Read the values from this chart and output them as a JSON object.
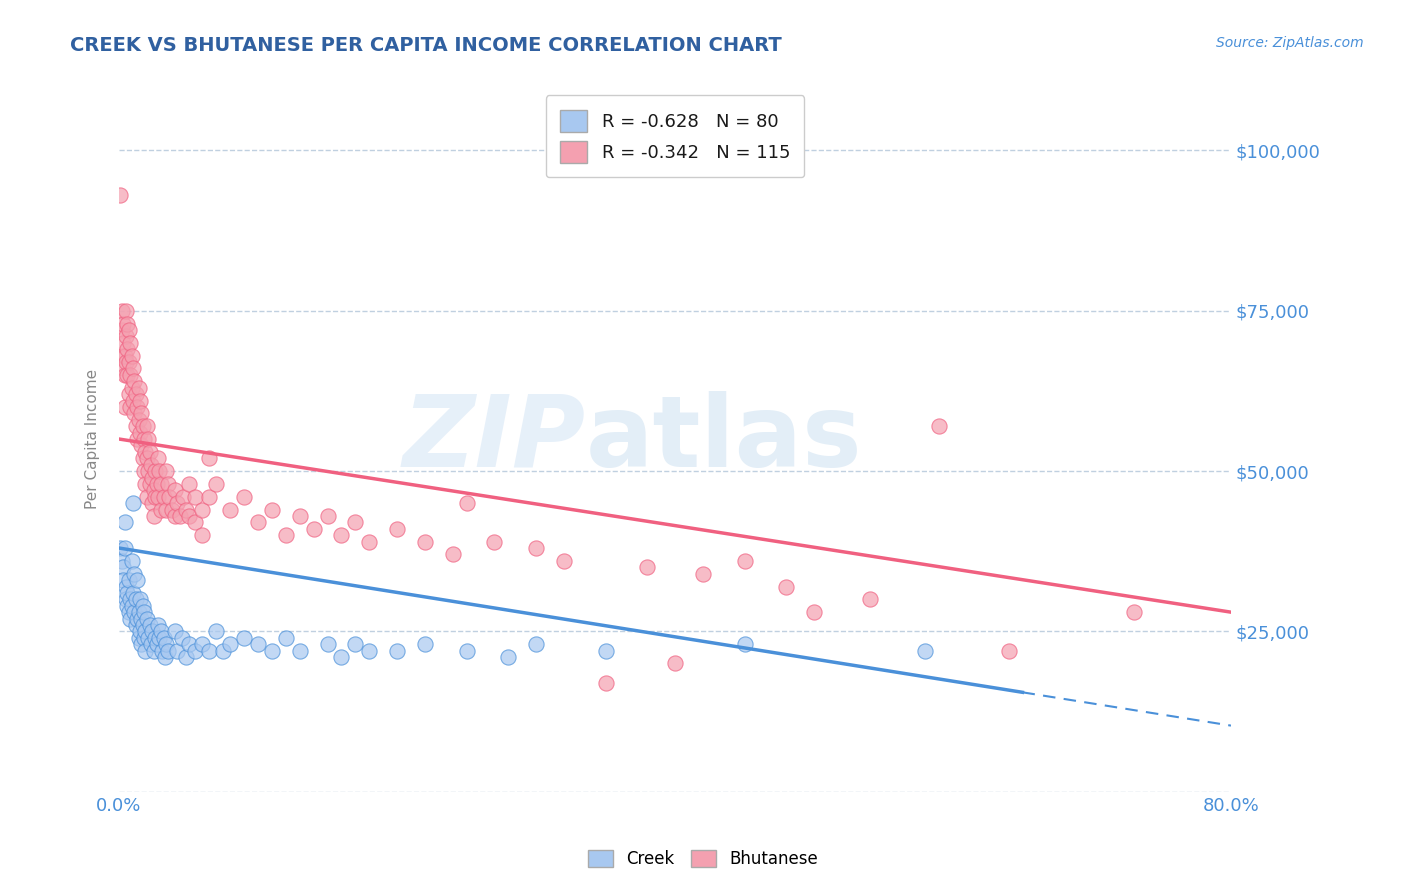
{
  "title": "CREEK VS BHUTANESE PER CAPITA INCOME CORRELATION CHART",
  "source_text": "Source: ZipAtlas.com",
  "ylabel": "Per Capita Income",
  "xlim": [
    0.0,
    0.8
  ],
  "ylim": [
    0,
    110000
  ],
  "yticks": [
    0,
    25000,
    50000,
    75000,
    100000
  ],
  "ytick_labels": [
    "",
    "$25,000",
    "$50,000",
    "$75,000",
    "$100,000"
  ],
  "xtick_labels": [
    "0.0%",
    "",
    "",
    "",
    "",
    "",
    "",
    "",
    "80.0%"
  ],
  "creek_color": "#a8c8f0",
  "bhutanese_color": "#f4a0b0",
  "creek_line_color": "#4a90d9",
  "bhutanese_line_color": "#f06080",
  "creek_R": -0.628,
  "creek_N": 80,
  "bhutanese_R": -0.342,
  "bhutanese_N": 115,
  "watermark_part1": "ZIP",
  "watermark_part2": "atlas",
  "background_color": "#ffffff",
  "grid_color": "#c0d0e0",
  "title_color": "#3060a0",
  "axis_label_color": "#888888",
  "tick_label_color": "#4a90d9",
  "creek_line_y0": 38000,
  "creek_line_y_at_065": 15500,
  "creek_line_x_solid_end": 0.65,
  "bhut_line_y0": 55000,
  "bhut_line_y1": 28000,
  "creek_scatter": [
    [
      0.001,
      38000
    ],
    [
      0.002,
      36000
    ],
    [
      0.003,
      35000
    ],
    [
      0.003,
      33000
    ],
    [
      0.004,
      42000
    ],
    [
      0.004,
      38000
    ],
    [
      0.005,
      32000
    ],
    [
      0.005,
      30000
    ],
    [
      0.006,
      29000
    ],
    [
      0.006,
      31000
    ],
    [
      0.007,
      28000
    ],
    [
      0.007,
      33000
    ],
    [
      0.008,
      30000
    ],
    [
      0.008,
      27000
    ],
    [
      0.009,
      36000
    ],
    [
      0.009,
      29000
    ],
    [
      0.01,
      45000
    ],
    [
      0.01,
      31000
    ],
    [
      0.011,
      28000
    ],
    [
      0.011,
      34000
    ],
    [
      0.012,
      26000
    ],
    [
      0.012,
      30000
    ],
    [
      0.013,
      27000
    ],
    [
      0.013,
      33000
    ],
    [
      0.014,
      28000
    ],
    [
      0.014,
      24000
    ],
    [
      0.015,
      30000
    ],
    [
      0.015,
      25000
    ],
    [
      0.016,
      27000
    ],
    [
      0.016,
      23000
    ],
    [
      0.017,
      29000
    ],
    [
      0.017,
      26000
    ],
    [
      0.018,
      24000
    ],
    [
      0.018,
      28000
    ],
    [
      0.019,
      25000
    ],
    [
      0.019,
      22000
    ],
    [
      0.02,
      27000
    ],
    [
      0.021,
      24000
    ],
    [
      0.022,
      26000
    ],
    [
      0.023,
      23000
    ],
    [
      0.024,
      25000
    ],
    [
      0.025,
      22000
    ],
    [
      0.026,
      24000
    ],
    [
      0.027,
      23000
    ],
    [
      0.028,
      26000
    ],
    [
      0.029,
      24000
    ],
    [
      0.03,
      25000
    ],
    [
      0.031,
      22000
    ],
    [
      0.032,
      24000
    ],
    [
      0.033,
      21000
    ],
    [
      0.034,
      23000
    ],
    [
      0.035,
      22000
    ],
    [
      0.04,
      25000
    ],
    [
      0.042,
      22000
    ],
    [
      0.045,
      24000
    ],
    [
      0.048,
      21000
    ],
    [
      0.05,
      23000
    ],
    [
      0.055,
      22000
    ],
    [
      0.06,
      23000
    ],
    [
      0.065,
      22000
    ],
    [
      0.07,
      25000
    ],
    [
      0.075,
      22000
    ],
    [
      0.08,
      23000
    ],
    [
      0.09,
      24000
    ],
    [
      0.1,
      23000
    ],
    [
      0.11,
      22000
    ],
    [
      0.12,
      24000
    ],
    [
      0.13,
      22000
    ],
    [
      0.15,
      23000
    ],
    [
      0.16,
      21000
    ],
    [
      0.17,
      23000
    ],
    [
      0.18,
      22000
    ],
    [
      0.2,
      22000
    ],
    [
      0.22,
      23000
    ],
    [
      0.25,
      22000
    ],
    [
      0.28,
      21000
    ],
    [
      0.3,
      23000
    ],
    [
      0.35,
      22000
    ],
    [
      0.45,
      23000
    ],
    [
      0.58,
      22000
    ]
  ],
  "bhutanese_scatter": [
    [
      0.001,
      93000
    ],
    [
      0.002,
      68000
    ],
    [
      0.002,
      72000
    ],
    [
      0.002,
      75000
    ],
    [
      0.003,
      70000
    ],
    [
      0.003,
      66000
    ],
    [
      0.003,
      73000
    ],
    [
      0.004,
      68000
    ],
    [
      0.004,
      65000
    ],
    [
      0.004,
      60000
    ],
    [
      0.005,
      75000
    ],
    [
      0.005,
      71000
    ],
    [
      0.005,
      67000
    ],
    [
      0.006,
      73000
    ],
    [
      0.006,
      69000
    ],
    [
      0.006,
      65000
    ],
    [
      0.007,
      72000
    ],
    [
      0.007,
      67000
    ],
    [
      0.007,
      62000
    ],
    [
      0.008,
      70000
    ],
    [
      0.008,
      65000
    ],
    [
      0.008,
      60000
    ],
    [
      0.009,
      68000
    ],
    [
      0.009,
      63000
    ],
    [
      0.01,
      66000
    ],
    [
      0.01,
      61000
    ],
    [
      0.011,
      64000
    ],
    [
      0.011,
      59000
    ],
    [
      0.012,
      62000
    ],
    [
      0.012,
      57000
    ],
    [
      0.013,
      60000
    ],
    [
      0.013,
      55000
    ],
    [
      0.014,
      63000
    ],
    [
      0.014,
      58000
    ],
    [
      0.015,
      61000
    ],
    [
      0.015,
      56000
    ],
    [
      0.016,
      59000
    ],
    [
      0.016,
      54000
    ],
    [
      0.017,
      57000
    ],
    [
      0.017,
      52000
    ],
    [
      0.018,
      55000
    ],
    [
      0.018,
      50000
    ],
    [
      0.019,
      53000
    ],
    [
      0.019,
      48000
    ],
    [
      0.02,
      57000
    ],
    [
      0.02,
      52000
    ],
    [
      0.02,
      46000
    ],
    [
      0.021,
      55000
    ],
    [
      0.021,
      50000
    ],
    [
      0.022,
      53000
    ],
    [
      0.022,
      48000
    ],
    [
      0.023,
      51000
    ],
    [
      0.024,
      49000
    ],
    [
      0.024,
      45000
    ],
    [
      0.025,
      47000
    ],
    [
      0.025,
      43000
    ],
    [
      0.026,
      50000
    ],
    [
      0.026,
      46000
    ],
    [
      0.027,
      48000
    ],
    [
      0.028,
      52000
    ],
    [
      0.028,
      46000
    ],
    [
      0.029,
      50000
    ],
    [
      0.03,
      48000
    ],
    [
      0.03,
      44000
    ],
    [
      0.032,
      46000
    ],
    [
      0.034,
      50000
    ],
    [
      0.034,
      44000
    ],
    [
      0.035,
      48000
    ],
    [
      0.036,
      46000
    ],
    [
      0.038,
      44000
    ],
    [
      0.04,
      47000
    ],
    [
      0.04,
      43000
    ],
    [
      0.042,
      45000
    ],
    [
      0.044,
      43000
    ],
    [
      0.046,
      46000
    ],
    [
      0.048,
      44000
    ],
    [
      0.05,
      48000
    ],
    [
      0.05,
      43000
    ],
    [
      0.055,
      46000
    ],
    [
      0.055,
      42000
    ],
    [
      0.06,
      44000
    ],
    [
      0.06,
      40000
    ],
    [
      0.065,
      46000
    ],
    [
      0.065,
      52000
    ],
    [
      0.07,
      48000
    ],
    [
      0.08,
      44000
    ],
    [
      0.09,
      46000
    ],
    [
      0.1,
      42000
    ],
    [
      0.11,
      44000
    ],
    [
      0.12,
      40000
    ],
    [
      0.13,
      43000
    ],
    [
      0.14,
      41000
    ],
    [
      0.15,
      43000
    ],
    [
      0.16,
      40000
    ],
    [
      0.17,
      42000
    ],
    [
      0.18,
      39000
    ],
    [
      0.2,
      41000
    ],
    [
      0.22,
      39000
    ],
    [
      0.24,
      37000
    ],
    [
      0.25,
      45000
    ],
    [
      0.27,
      39000
    ],
    [
      0.3,
      38000
    ],
    [
      0.32,
      36000
    ],
    [
      0.35,
      17000
    ],
    [
      0.38,
      35000
    ],
    [
      0.4,
      20000
    ],
    [
      0.42,
      34000
    ],
    [
      0.45,
      36000
    ],
    [
      0.48,
      32000
    ],
    [
      0.5,
      28000
    ],
    [
      0.54,
      30000
    ],
    [
      0.59,
      57000
    ],
    [
      0.64,
      22000
    ],
    [
      0.73,
      28000
    ]
  ]
}
